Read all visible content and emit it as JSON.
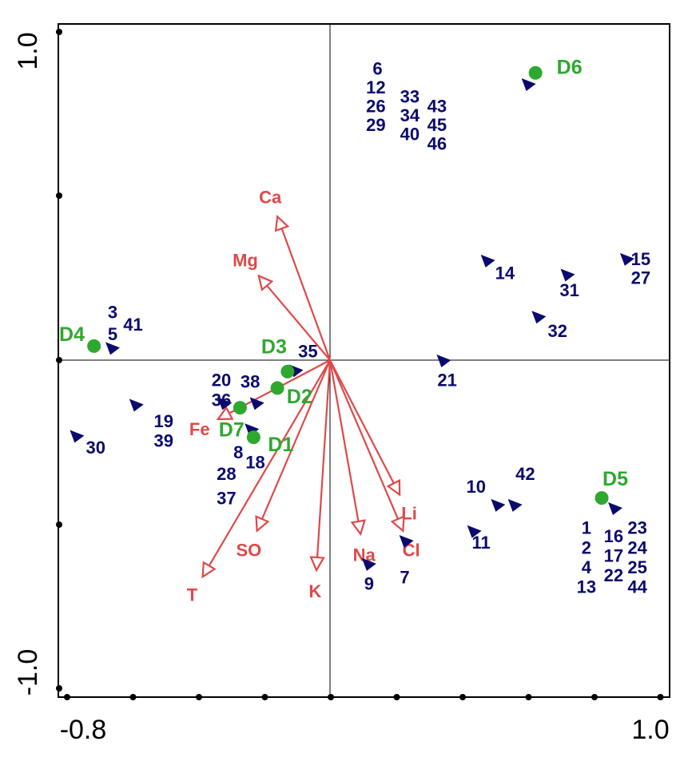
{
  "chart_data": {
    "type": "scatter",
    "title": "",
    "xlabel": "",
    "ylabel": "",
    "xlim": [
      -0.8,
      1.0
    ],
    "ylim": [
      -1.0,
      1.0
    ],
    "x_tick_labels": [
      "-0.8",
      "1.0"
    ],
    "y_tick_labels": [
      "1.0",
      "-1.0"
    ],
    "grid": false,
    "colors": {
      "env": "#e04848",
      "site": "#0a0a6e",
      "group": "#2ea82e",
      "axis": "#000000"
    },
    "env_vectors": [
      {
        "name": "Ca",
        "x": -0.155,
        "y": 0.46
      },
      {
        "name": "Mg",
        "x": -0.21,
        "y": 0.27
      },
      {
        "name": "Fe",
        "x": -0.33,
        "y": -0.18
      },
      {
        "name": "SO",
        "x": -0.215,
        "y": -0.52
      },
      {
        "name": "T",
        "x": -0.375,
        "y": -0.66
      },
      {
        "name": "K",
        "x": -0.04,
        "y": -0.64
      },
      {
        "name": "Na",
        "x": 0.09,
        "y": -0.53
      },
      {
        "name": "Li",
        "x": 0.205,
        "y": -0.41
      },
      {
        "name": "Cl",
        "x": 0.215,
        "y": -0.52
      }
    ],
    "site_markers": [
      {
        "x": 0.585,
        "y": 0.885
      },
      {
        "x": -0.64,
        "y": 0.04
      },
      {
        "x": -0.1,
        "y": -0.03
      },
      {
        "x": -0.215,
        "y": -0.13
      },
      {
        "x": -0.31,
        "y": -0.13
      },
      {
        "x": -0.57,
        "y": -0.135
      },
      {
        "x": -0.745,
        "y": -0.23
      },
      {
        "x": -0.23,
        "y": -0.21
      },
      {
        "x": 0.335,
        "y": 0.0
      },
      {
        "x": 0.465,
        "y": 0.32
      },
      {
        "x": 0.7,
        "y": 0.275
      },
      {
        "x": 0.875,
        "y": 0.325
      },
      {
        "x": 0.615,
        "y": 0.14
      },
      {
        "x": 0.545,
        "y": -0.44
      },
      {
        "x": 0.495,
        "y": -0.44
      },
      {
        "x": 0.425,
        "y": -0.52
      },
      {
        "x": 0.225,
        "y": -0.55
      },
      {
        "x": 0.115,
        "y": -0.62
      },
      {
        "x": 0.84,
        "y": -0.45
      }
    ],
    "site_labels": [
      {
        "text": "6",
        "x": 0.14,
        "y": 0.935
      },
      {
        "text": "12",
        "x": 0.135,
        "y": 0.875
      },
      {
        "text": "26",
        "x": 0.135,
        "y": 0.815
      },
      {
        "text": "29",
        "x": 0.135,
        "y": 0.755
      },
      {
        "text": "33",
        "x": 0.235,
        "y": 0.845
      },
      {
        "text": "34",
        "x": 0.235,
        "y": 0.785
      },
      {
        "text": "40",
        "x": 0.235,
        "y": 0.725
      },
      {
        "text": "43",
        "x": 0.315,
        "y": 0.815
      },
      {
        "text": "45",
        "x": 0.315,
        "y": 0.755
      },
      {
        "text": "46",
        "x": 0.315,
        "y": 0.695
      },
      {
        "text": "3",
        "x": -0.64,
        "y": 0.155
      },
      {
        "text": "41",
        "x": -0.58,
        "y": 0.115
      },
      {
        "text": "5",
        "x": -0.64,
        "y": 0.085
      },
      {
        "text": "35",
        "x": -0.065,
        "y": 0.03
      },
      {
        "text": "20",
        "x": -0.32,
        "y": -0.06
      },
      {
        "text": "38",
        "x": -0.235,
        "y": -0.065
      },
      {
        "text": "36",
        "x": -0.32,
        "y": -0.12
      },
      {
        "text": "19",
        "x": -0.49,
        "y": -0.185
      },
      {
        "text": "39",
        "x": -0.49,
        "y": -0.245
      },
      {
        "text": "30",
        "x": -0.69,
        "y": -0.265
      },
      {
        "text": "8",
        "x": -0.27,
        "y": -0.28
      },
      {
        "text": "18",
        "x": -0.22,
        "y": -0.31
      },
      {
        "text": "28",
        "x": -0.305,
        "y": -0.345
      },
      {
        "text": "37",
        "x": -0.305,
        "y": -0.42
      },
      {
        "text": "21",
        "x": 0.345,
        "y": -0.06
      },
      {
        "text": "14",
        "x": 0.515,
        "y": 0.28
      },
      {
        "text": "31",
        "x": 0.705,
        "y": 0.225
      },
      {
        "text": "15",
        "x": 0.915,
        "y": 0.325
      },
      {
        "text": "27",
        "x": 0.915,
        "y": 0.265
      },
      {
        "text": "32",
        "x": 0.67,
        "y": 0.095
      },
      {
        "text": "10",
        "x": 0.43,
        "y": -0.385
      },
      {
        "text": "42",
        "x": 0.575,
        "y": -0.345
      },
      {
        "text": "11",
        "x": 0.445,
        "y": -0.555
      },
      {
        "text": "9",
        "x": 0.115,
        "y": -0.68
      },
      {
        "text": "7",
        "x": 0.22,
        "y": -0.66
      },
      {
        "text": "1",
        "x": 0.755,
        "y": -0.51
      },
      {
        "text": "2",
        "x": 0.755,
        "y": -0.57
      },
      {
        "text": "4",
        "x": 0.755,
        "y": -0.63
      },
      {
        "text": "13",
        "x": 0.755,
        "y": -0.69
      },
      {
        "text": "16",
        "x": 0.835,
        "y": -0.535
      },
      {
        "text": "17",
        "x": 0.835,
        "y": -0.595
      },
      {
        "text": "22",
        "x": 0.835,
        "y": -0.655
      },
      {
        "text": "23",
        "x": 0.905,
        "y": -0.51
      },
      {
        "text": "24",
        "x": 0.905,
        "y": -0.57
      },
      {
        "text": "25",
        "x": 0.905,
        "y": -0.63
      },
      {
        "text": "44",
        "x": 0.905,
        "y": -0.69
      }
    ],
    "groups": [
      {
        "name": "D6",
        "x": 0.605,
        "y": 0.92,
        "label_dx": 0.1,
        "label_dy": 0.02
      },
      {
        "name": "D4",
        "x": -0.695,
        "y": 0.045,
        "label_dx": -0.065,
        "label_dy": 0.04
      },
      {
        "name": "D3",
        "x": -0.125,
        "y": -0.035,
        "label_dx": -0.04,
        "label_dy": 0.08
      },
      {
        "name": "D2",
        "x": -0.155,
        "y": -0.085,
        "label_dx": 0.065,
        "label_dy": -0.025
      },
      {
        "name": "D7",
        "x": -0.265,
        "y": -0.145,
        "label_dx": -0.025,
        "label_dy": -0.065
      },
      {
        "name": "D1",
        "x": -0.225,
        "y": -0.235,
        "label_dx": 0.08,
        "label_dy": -0.02
      },
      {
        "name": "D5",
        "x": 0.8,
        "y": -0.42,
        "label_dx": 0.04,
        "label_dy": 0.06
      }
    ]
  }
}
